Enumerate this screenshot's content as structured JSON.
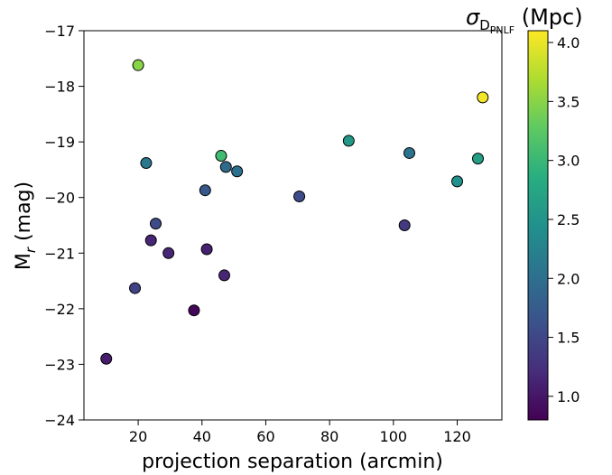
{
  "chart_data": {
    "type": "scatter",
    "xlabel": "projection separation (arcmin)",
    "ylabel_main": "M",
    "ylabel_sub": "r",
    "ylabel_unit": " (mag)",
    "xlim": [
      3,
      134
    ],
    "ylim": [
      -24,
      -17
    ],
    "y_inverted": true,
    "x_ticks": [
      20,
      40,
      60,
      80,
      100,
      120
    ],
    "y_ticks": [
      -17,
      -18,
      -19,
      -20,
      -21,
      -22,
      -23,
      -24
    ],
    "y_tick_labels": [
      "−17",
      "−18",
      "−19",
      "−20",
      "−21",
      "−22",
      "−23",
      "−24"
    ],
    "grid": false,
    "colorbar": {
      "label_sigma": "σ",
      "label_sub": "D",
      "label_subsub": "PNLF",
      "label_unit": " (Mpc)",
      "range": [
        0.8,
        4.1
      ],
      "ticks": [
        1.0,
        1.5,
        2.0,
        2.5,
        3.0,
        3.5,
        4.0
      ],
      "tick_labels": [
        "1.0",
        "1.5",
        "2.0",
        "2.5",
        "3.0",
        "3.5",
        "4.0"
      ],
      "colormap": "viridis"
    },
    "points": [
      {
        "x": 10,
        "y": -22.9,
        "c": 1.05
      },
      {
        "x": 19,
        "y": -21.63,
        "c": 1.45
      },
      {
        "x": 20,
        "y": -17.62,
        "c": 3.5
      },
      {
        "x": 22.5,
        "y": -19.38,
        "c": 2.1
      },
      {
        "x": 24,
        "y": -20.77,
        "c": 1.15
      },
      {
        "x": 25.5,
        "y": -20.47,
        "c": 1.55
      },
      {
        "x": 29.5,
        "y": -21.0,
        "c": 1.15
      },
      {
        "x": 37.5,
        "y": -22.03,
        "c": 0.85
      },
      {
        "x": 41,
        "y": -19.87,
        "c": 1.7
      },
      {
        "x": 41.5,
        "y": -20.93,
        "c": 1.1
      },
      {
        "x": 46,
        "y": -19.25,
        "c": 3.05
      },
      {
        "x": 47,
        "y": -21.4,
        "c": 1.15
      },
      {
        "x": 47.5,
        "y": -19.45,
        "c": 1.95
      },
      {
        "x": 51,
        "y": -19.53,
        "c": 2.0
      },
      {
        "x": 70.5,
        "y": -19.98,
        "c": 1.55
      },
      {
        "x": 86,
        "y": -18.98,
        "c": 2.55
      },
      {
        "x": 103.5,
        "y": -20.5,
        "c": 1.35
      },
      {
        "x": 105,
        "y": -19.2,
        "c": 2.05
      },
      {
        "x": 120,
        "y": -19.71,
        "c": 2.45
      },
      {
        "x": 126.5,
        "y": -19.3,
        "c": 2.65
      },
      {
        "x": 128,
        "y": -18.2,
        "c": 4.05
      }
    ]
  }
}
